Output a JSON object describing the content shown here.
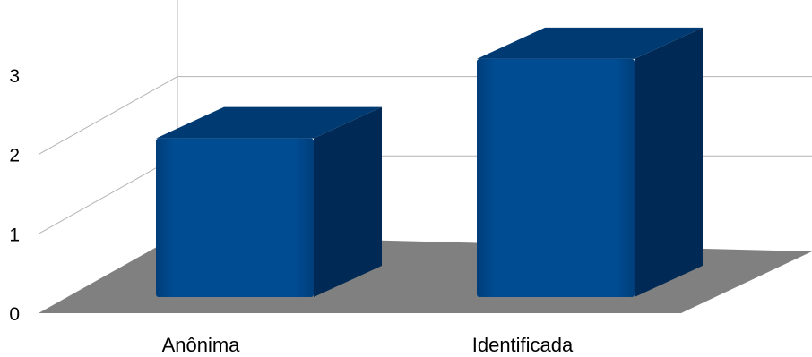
{
  "chart_data": {
    "type": "bar",
    "style": "3d-column",
    "categories": [
      "Anônima",
      "Identificada"
    ],
    "values": [
      2,
      3
    ],
    "y_ticks": [
      "0",
      "1",
      "2",
      "3"
    ],
    "ylim": [
      0,
      3.75
    ],
    "grid": true,
    "title": "",
    "xlabel": "",
    "ylabel": "",
    "colors": {
      "bar_front": "#004C93",
      "bar_side": "#002A55",
      "bar_top": "#003A72",
      "floor": "#808080",
      "grid": "#B3B3B3",
      "background": "#FFFFFF"
    }
  }
}
